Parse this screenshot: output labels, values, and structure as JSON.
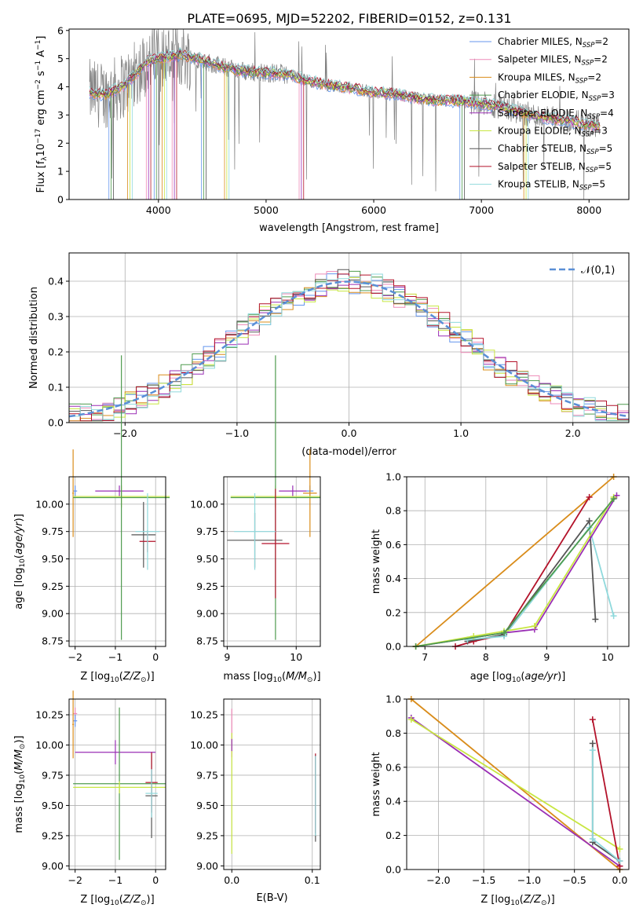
{
  "figure": {
    "title": "PLATE=0695, MJD=52202, FIBERID=0152, z=0.131"
  },
  "chart_data": [
    {
      "id": "spectrum",
      "type": "line",
      "title": "PLATE=0695, MJD=52202, FIBERID=0152, z=0.131",
      "xlabel": "wavelength [Angstrom, rest frame]",
      "ylabel": "Flux [f",
      "xlim": [
        3170,
        8370
      ],
      "ylim": [
        0,
        6.05
      ],
      "xticks": [
        4000,
        5000,
        6000,
        7000,
        8000
      ],
      "yticks": [
        0,
        1,
        2,
        3,
        4,
        5,
        6
      ],
      "legend_position": "top-right",
      "grid": false,
      "legend": [
        {
          "label": "Chabrier MILES, N",
          "sub": "SSP",
          "eq": "=2",
          "color": "#6495ed"
        },
        {
          "label": "Salpeter MILES, N",
          "sub": "SSP",
          "eq": "=2",
          "color": "#ee8ab8"
        },
        {
          "label": "Kroupa MILES, N",
          "sub": "SSP",
          "eq": "=2",
          "color": "#d98c1a"
        },
        {
          "label": "Chabrier ELODIE, N",
          "sub": "SSP",
          "eq": "=3",
          "color": "#4f9b4f"
        },
        {
          "label": "Salpeter ELODIE, N",
          "sub": "SSP",
          "eq": "=4",
          "color": "#9a2fb5"
        },
        {
          "label": "Kroupa ELODIE, N",
          "sub": "SSP",
          "eq": "=3",
          "color": "#c8e641"
        },
        {
          "label": "Chabrier STELIB, N",
          "sub": "SSP",
          "eq": "=5",
          "color": "#555555"
        },
        {
          "label": "Salpeter STELIB, N",
          "sub": "SSP",
          "eq": "=5",
          "color": "#b3122a"
        },
        {
          "label": "Kroupa STELIB, N",
          "sub": "SSP",
          "eq": "=5",
          "color": "#8fd9dc"
        }
      ],
      "data_profile": {
        "x": [
          3360,
          3500,
          3700,
          3900,
          4000,
          4200,
          4400,
          4600,
          4800,
          5000,
          5200,
          5400,
          5600,
          5800,
          6000,
          6200,
          6400,
          6600,
          6800,
          7000,
          7200,
          7400,
          7600,
          7800,
          8000,
          8100
        ],
        "y": [
          3.8,
          3.7,
          4.1,
          4.9,
          5.0,
          5.15,
          4.95,
          4.7,
          4.55,
          4.5,
          4.45,
          4.2,
          4.05,
          3.95,
          3.8,
          3.75,
          3.6,
          3.5,
          3.5,
          3.4,
          3.3,
          3.05,
          2.9,
          2.8,
          2.65,
          2.6
        ]
      }
    },
    {
      "id": "residuals",
      "type": "step",
      "xlabel": "(data-model)/error",
      "ylabel": "Normed distribution",
      "xlim": [
        -2.5,
        2.5
      ],
      "ylim": [
        0,
        0.48
      ],
      "xticks": [
        -2,
        -1,
        0,
        1,
        2
      ],
      "yticks": [
        0.0,
        0.1,
        0.2,
        0.3,
        0.4
      ],
      "grid": true,
      "legend_position": "top-right",
      "reference_curve": {
        "label": "𝒩(0,1)",
        "color": "#5a8fd6"
      }
    },
    {
      "id": "age_vs_Z",
      "type": "errorbar",
      "xlabel": "Z [log",
      "ylabel": "age  [log",
      "xlim": [
        -2.15,
        0.25
      ],
      "ylim": [
        8.7,
        10.25
      ],
      "xticks": [
        -2,
        -1,
        0
      ],
      "yticks": [
        8.75,
        9.0,
        9.25,
        9.5,
        9.75,
        10.0
      ],
      "grid": true,
      "points": [
        {
          "x": -2.0,
          "y": 10.12,
          "xerr": 0.05,
          "yerr": 0.05,
          "color": "#6495ed"
        },
        {
          "x": -2.05,
          "y": 10.1,
          "xerr": 0.02,
          "yerr": 0.4,
          "color": "#d98c1a"
        },
        {
          "x": -0.9,
          "y": 10.12,
          "xerr": 0.6,
          "yerr": 0.05,
          "color": "#9a2fb5"
        },
        {
          "x": -0.85,
          "y": 10.07,
          "xerr": 1.2,
          "yerr": 0.1,
          "color": "#c8e641"
        },
        {
          "x": -0.85,
          "y": 10.06,
          "xerr": 1.2,
          "yerr": 1.3,
          "color": "#4f9b4f"
        },
        {
          "x": -0.3,
          "y": 9.72,
          "xerr": 0.3,
          "yerr": 0.3,
          "color": "#555555"
        },
        {
          "x": -0.2,
          "y": 9.66,
          "xerr": 0.2,
          "yerr": 0.1,
          "color": "#b3122a"
        },
        {
          "x": -0.2,
          "y": 9.75,
          "xerr": 0.3,
          "yerr": 0.35,
          "color": "#8fd9dc"
        }
      ]
    },
    {
      "id": "age_vs_mass",
      "type": "errorbar",
      "xlabel": "mass [log",
      "ylabel": "",
      "xlim": [
        8.95,
        10.35
      ],
      "ylim": [
        8.7,
        10.25
      ],
      "xticks": [
        9,
        10
      ],
      "yticks": [
        8.75,
        9.0,
        9.25,
        9.5,
        9.75,
        10.0
      ],
      "grid": true,
      "points": [
        {
          "x": 10.2,
          "y": 10.12,
          "xerr": 0.05,
          "yerr": 0.05,
          "color": "#6495ed"
        },
        {
          "x": 10.2,
          "y": 10.1,
          "xerr": 0.1,
          "yerr": 0.4,
          "color": "#d98c1a"
        },
        {
          "x": 9.95,
          "y": 10.12,
          "xerr": 0.2,
          "yerr": 0.05,
          "color": "#9a2fb5"
        },
        {
          "x": 9.7,
          "y": 10.07,
          "xerr": 0.65,
          "yerr": 0.1,
          "color": "#c8e641"
        },
        {
          "x": 9.7,
          "y": 10.06,
          "xerr": 0.65,
          "yerr": 1.3,
          "color": "#4f9b4f"
        },
        {
          "x": 9.4,
          "y": 9.67,
          "xerr": 0.4,
          "yerr": 0.25,
          "color": "#555555"
        },
        {
          "x": 9.7,
          "y": 9.64,
          "xerr": 0.2,
          "yerr": 0.5,
          "color": "#b3122a"
        },
        {
          "x": 9.4,
          "y": 9.75,
          "xerr": 0.3,
          "yerr": 0.35,
          "color": "#8fd9dc"
        }
      ]
    },
    {
      "id": "weight_vs_age",
      "type": "line",
      "xlabel": "age  [log",
      "ylabel": "mass weight",
      "xlim": [
        6.7,
        10.35
      ],
      "ylim": [
        0,
        1.0
      ],
      "xticks": [
        7,
        8,
        9,
        10
      ],
      "yticks": [
        0.0,
        0.2,
        0.4,
        0.6,
        0.8,
        1.0
      ],
      "grid": true,
      "series": [
        {
          "color": "#d98c1a",
          "x": [
            6.85,
            10.1
          ],
          "y": [
            0.0,
            1.0
          ]
        },
        {
          "color": "#b3122a",
          "x": [
            7.5,
            7.8,
            8.3,
            9.7
          ],
          "y": [
            0.0,
            0.03,
            0.07,
            0.88
          ]
        },
        {
          "color": "#555555",
          "x": [
            7.7,
            8.3,
            9.7,
            9.8
          ],
          "y": [
            0.03,
            0.07,
            0.74,
            0.16
          ]
        },
        {
          "color": "#8fd9dc",
          "x": [
            7.7,
            8.3,
            9.7,
            10.1
          ],
          "y": [
            0.04,
            0.06,
            0.7,
            0.18
          ]
        },
        {
          "color": "#9a2fb5",
          "x": [
            6.85,
            8.3,
            8.8,
            10.15
          ],
          "y": [
            0.0,
            0.08,
            0.1,
            0.89
          ]
        },
        {
          "color": "#c8e641",
          "x": [
            6.85,
            7.8,
            8.3,
            8.8,
            10.1
          ],
          "y": [
            0.0,
            0.06,
            0.09,
            0.12,
            0.88
          ]
        },
        {
          "color": "#4f9b4f",
          "x": [
            6.85,
            8.3,
            10.1
          ],
          "y": [
            0.0,
            0.08,
            0.87
          ]
        }
      ]
    },
    {
      "id": "mass_vs_Z",
      "type": "errorbar",
      "xlabel": "Z [log",
      "ylabel": "mass [log",
      "xlim": [
        -2.15,
        0.25
      ],
      "ylim": [
        8.97,
        10.38
      ],
      "xticks": [
        -2,
        -1,
        0
      ],
      "yticks": [
        9.0,
        9.25,
        9.5,
        9.75,
        10.0,
        10.25
      ],
      "grid": true,
      "points": [
        {
          "x": -2.0,
          "y": 10.26,
          "xerr": 0.05,
          "yerr": 0.05,
          "color": "#ee8ab8"
        },
        {
          "x": -2.0,
          "y": 10.2,
          "xerr": 0.05,
          "yerr": 0.05,
          "color": "#6495ed"
        },
        {
          "x": -2.05,
          "y": 10.17,
          "xerr": 0.02,
          "yerr": 0.28,
          "color": "#d98c1a"
        },
        {
          "x": -1.0,
          "y": 9.94,
          "xerr": 1.0,
          "yerr": 0.1,
          "color": "#9a2fb5"
        },
        {
          "x": -0.9,
          "y": 9.68,
          "xerr": 1.15,
          "yerr": 0.63,
          "color": "#4f9b4f"
        },
        {
          "x": -0.9,
          "y": 9.65,
          "xerr": 1.15,
          "yerr": 0.05,
          "color": "#c8e641"
        },
        {
          "x": -0.1,
          "y": 9.58,
          "xerr": 0.15,
          "yerr": 0.35,
          "color": "#555555"
        },
        {
          "x": -0.1,
          "y": 9.69,
          "xerr": 0.15,
          "yerr": 0.25,
          "color": "#b3122a"
        },
        {
          "x": -0.1,
          "y": 9.6,
          "xerr": 0.15,
          "yerr": 0.2,
          "color": "#8fd9dc"
        }
      ]
    },
    {
      "id": "mass_vs_ebv",
      "type": "errorbar",
      "xlabel": "E(B-V)",
      "ylabel": "",
      "xlim": [
        -0.01,
        0.11
      ],
      "ylim": [
        8.97,
        10.38
      ],
      "xticks": [
        0.0,
        0.1
      ],
      "yticks": [
        9.0,
        9.25,
        9.5,
        9.75,
        10.0,
        10.25
      ],
      "grid": true,
      "points": [
        {
          "x": 0.0,
          "y": 10.1,
          "xerr": 0.0,
          "yerr": 0.2,
          "color": "#ee8ab8"
        },
        {
          "x": 0.0,
          "y": 9.6,
          "xerr": 0.0,
          "yerr": 0.5,
          "color": "#c8e641"
        },
        {
          "x": 0.0,
          "y": 10.0,
          "xerr": 0.0,
          "yerr": 0.05,
          "color": "#9a2fb5"
        },
        {
          "x": 0.104,
          "y": 9.56,
          "xerr": 0.0,
          "yerr": 0.36,
          "color": "#555555"
        },
        {
          "x": 0.104,
          "y": 9.6,
          "xerr": 0.0,
          "yerr": 0.33,
          "color": "#b3122a"
        },
        {
          "x": 0.104,
          "y": 9.58,
          "xerr": 0.0,
          "yerr": 0.33,
          "color": "#8fd9dc"
        }
      ]
    },
    {
      "id": "weight_vs_Z",
      "type": "line",
      "xlabel": "Z [log",
      "ylabel": "mass weight",
      "xlim": [
        -2.35,
        0.1
      ],
      "ylim": [
        0,
        1.0
      ],
      "xticks": [
        -2.0,
        -1.5,
        -1.0,
        -0.5,
        0.0
      ],
      "yticks": [
        0.0,
        0.2,
        0.4,
        0.6,
        0.8,
        1.0
      ],
      "grid": true,
      "series": [
        {
          "color": "#d98c1a",
          "x": [
            -2.3,
            0.0
          ],
          "y": [
            1.0,
            0.0
          ]
        },
        {
          "color": "#9a2fb5",
          "x": [
            -2.3,
            0.0
          ],
          "y": [
            0.89,
            0.02
          ]
        },
        {
          "color": "#c8e641",
          "x": [
            -2.3,
            0.0
          ],
          "y": [
            0.88,
            0.12
          ]
        },
        {
          "color": "#b3122a",
          "x": [
            -0.3,
            0.0
          ],
          "y": [
            0.88,
            0.02
          ]
        },
        {
          "color": "#555555",
          "x": [
            -0.3,
            -0.3,
            0.0
          ],
          "y": [
            0.74,
            0.16,
            0.05
          ]
        },
        {
          "color": "#8fd9dc",
          "x": [
            -0.3,
            -0.3,
            0.0
          ],
          "y": [
            0.7,
            0.18,
            0.05
          ]
        }
      ]
    }
  ]
}
